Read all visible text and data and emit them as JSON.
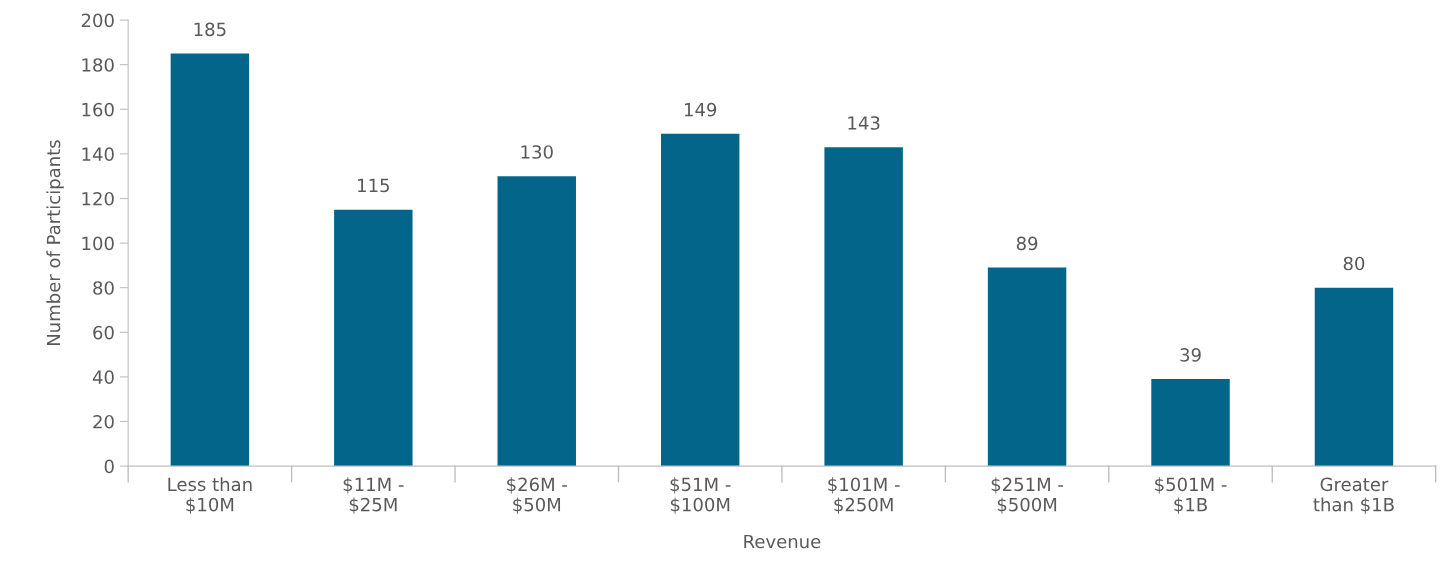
{
  "chart_data": {
    "type": "bar",
    "xlabel": "Revenue",
    "ylabel": "Number of Participants",
    "categories": [
      "Less than\n$10M",
      "$11M -\n$25M",
      "$26M -\n$50M",
      "$51M -\n$100M",
      "$101M -\n$250M",
      "$251M -\n$500M",
      "$501M -\n$1B",
      "Greater\nthan $1B"
    ],
    "values": [
      185,
      115,
      130,
      149,
      143,
      89,
      39,
      80
    ],
    "color": "#04658a",
    "ylim": [
      0,
      200
    ],
    "yticks": [
      0,
      20,
      40,
      60,
      80,
      100,
      120,
      140,
      160,
      180,
      200
    ],
    "data_labels": true,
    "grid": false,
    "legend": false
  }
}
